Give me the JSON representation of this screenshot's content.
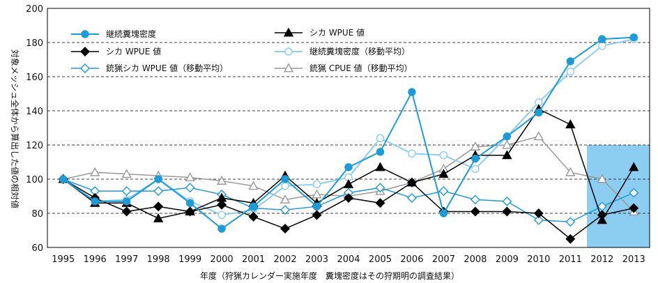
{
  "chart_data": {
    "type": "line",
    "x": [
      1995,
      1996,
      1997,
      1998,
      1999,
      2000,
      2001,
      2002,
      2003,
      2004,
      2005,
      2006,
      2007,
      2008,
      2009,
      2010,
      2011,
      2012,
      2013
    ],
    "xlabel": "年度（狩猟カレンダー実施年度　糞塊密度はその狩期明の調査結果）",
    "ylabel": "対象メッシュ全体から算出した値の相対値",
    "ylim": [
      60,
      200
    ],
    "yticks": [
      60,
      80,
      100,
      120,
      140,
      160,
      180,
      200
    ],
    "grid": "horizontal dashed",
    "legend": "top-left, two columns",
    "highlight_range": [
      2012,
      2013
    ],
    "highlight_color": "#8ccdf2",
    "series": [
      {
        "name": "継続糞塊密度",
        "color": "#1e9bd7",
        "marker": "circle-filled",
        "values": [
          100,
          87,
          87,
          100,
          86,
          71,
          84,
          100,
          84,
          107,
          116,
          151,
          80,
          112,
          125,
          139,
          169,
          182,
          183
        ]
      },
      {
        "name": "シカ WPUE 値",
        "color": "#000000",
        "marker": "triangle-filled",
        "values": [
          100,
          86,
          86,
          77,
          81,
          89,
          86,
          102,
          86,
          97,
          107,
          98,
          103,
          114,
          114,
          141,
          132,
          76,
          107
        ]
      },
      {
        "name": "シカ WPUE 値",
        "color": "#000000",
        "marker": "diamond-filled",
        "values": [
          100,
          89,
          81,
          84,
          81,
          85,
          78,
          71,
          79,
          89,
          86,
          98,
          81,
          81,
          81,
          80,
          65,
          79,
          83
        ]
      },
      {
        "name": "継続糞塊密度（移動平均）",
        "color": "#8ccdf2",
        "marker": "circle-open",
        "values": [
          100,
          87,
          88,
          100,
          87,
          79,
          82,
          96,
          97,
          101,
          124,
          115,
          114,
          106,
          125,
          145,
          163,
          178,
          182
        ]
      },
      {
        "name": "銃猟シカ WPUE 値（移動平均）",
        "color": "#1e9bd7",
        "marker": "diamond-open",
        "values": [
          100,
          93,
          93,
          93,
          95,
          91,
          83,
          82,
          84,
          92,
          95,
          89,
          93,
          88,
          87,
          76,
          75,
          84,
          92
        ]
      },
      {
        "name": "銃猟 CPUE 値（移動平均）",
        "color": "#999999",
        "marker": "triangle-open",
        "values": [
          100,
          104,
          103,
          102,
          101,
          99,
          96,
          88,
          91,
          90,
          93,
          98,
          106,
          119,
          120,
          125,
          104,
          100,
          81
        ]
      }
    ]
  }
}
